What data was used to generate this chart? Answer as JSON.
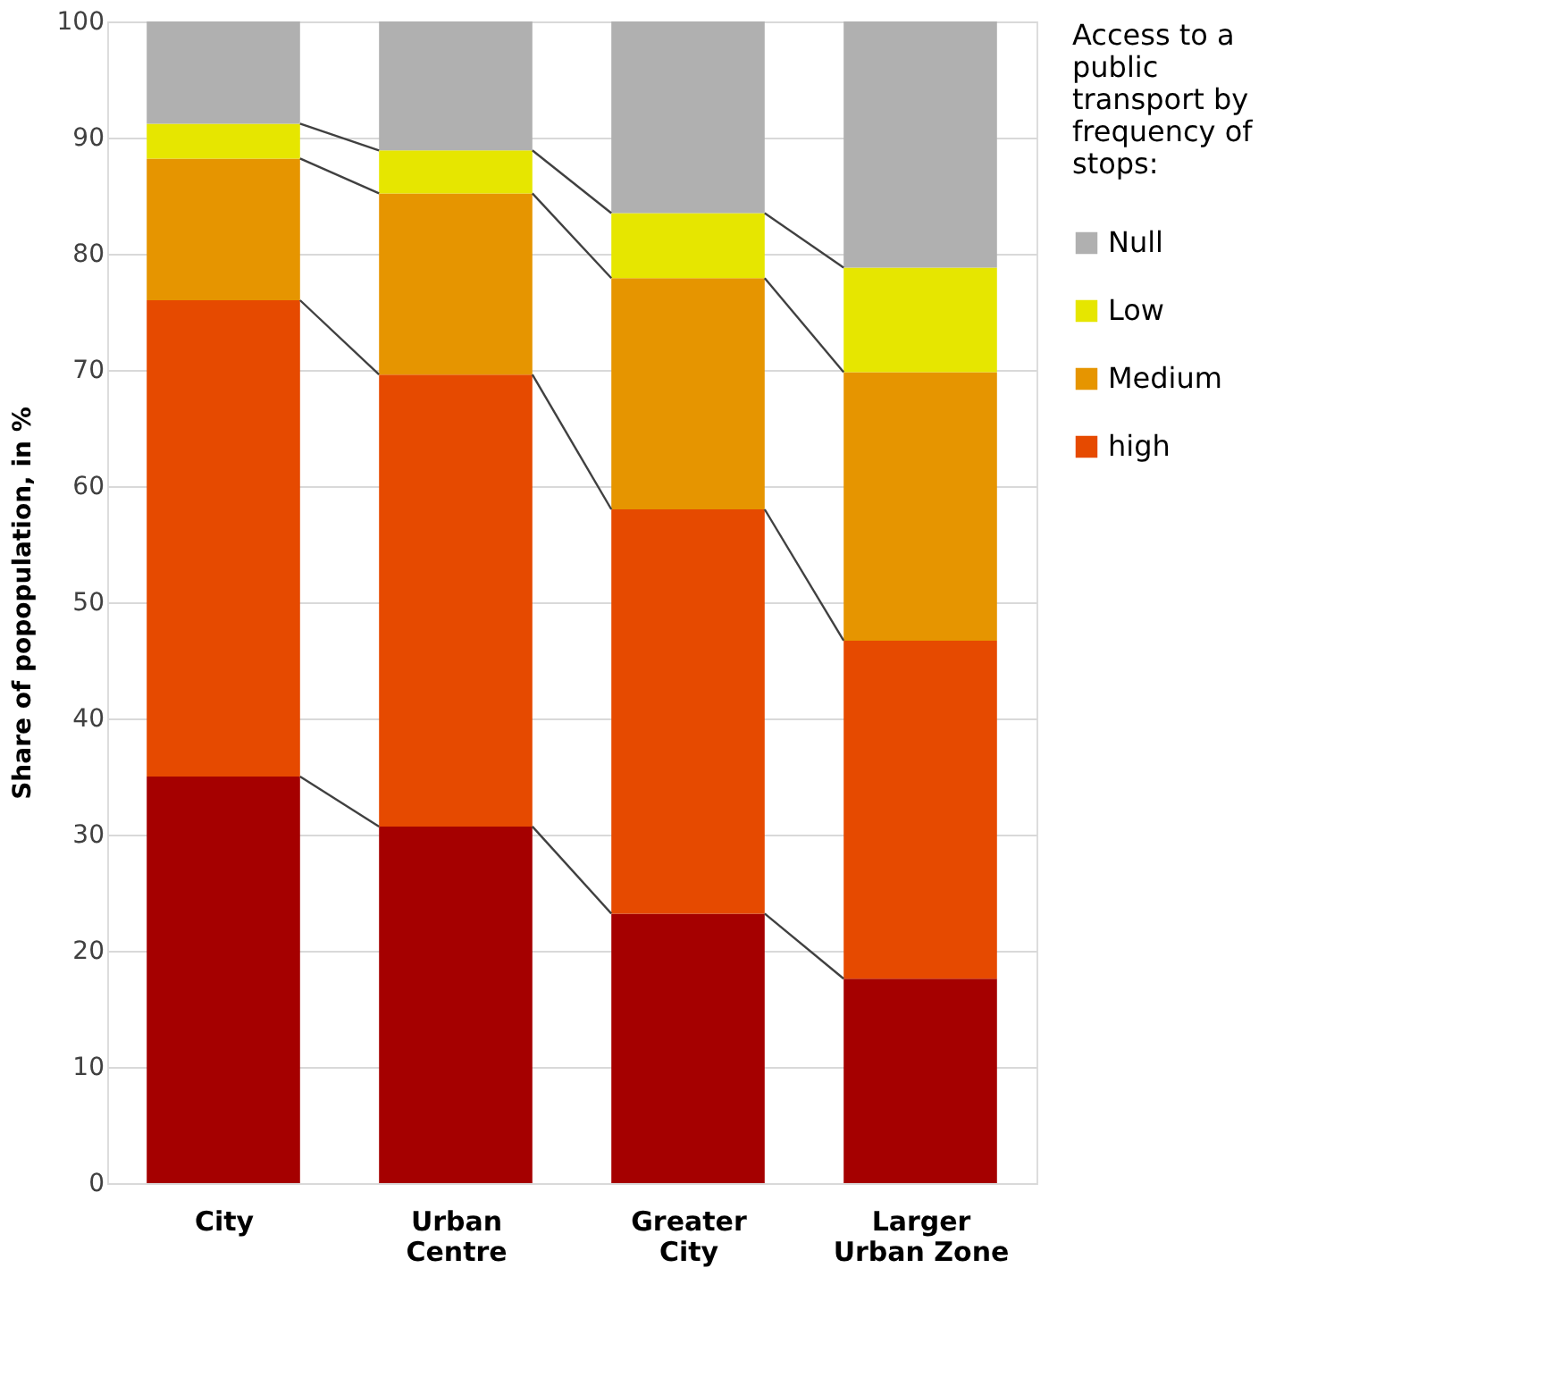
{
  "chart_data": {
    "type": "bar",
    "stacked": true,
    "ylabel": "Share of popopulation, in %",
    "legend_title": "Access to a public transport by frequency of stops:",
    "categories": [
      "City",
      "Urban Centre",
      "Greater City",
      "Larger Urban Zone"
    ],
    "series": [
      {
        "color": "#a50000",
        "values": [
          35.0,
          30.7,
          23.2,
          17.6
        ]
      },
      {
        "name": "high",
        "color": "#e64a00",
        "values": [
          41.0,
          38.9,
          34.8,
          29.1
        ]
      },
      {
        "name": "Medium",
        "color": "#e69500",
        "values": [
          12.2,
          15.6,
          19.9,
          23.1
        ]
      },
      {
        "name": "Low",
        "color": "#e6e600",
        "values": [
          3.0,
          3.7,
          5.6,
          9.0
        ]
      },
      {
        "name": "Null",
        "color": "#b0b0b0",
        "values": [
          8.8,
          11.1,
          16.5,
          21.2
        ]
      }
    ],
    "ylim": [
      0,
      100
    ],
    "yticks": [
      0,
      10,
      20,
      30,
      40,
      50,
      60,
      70,
      80,
      90,
      100
    ],
    "grid": "y",
    "legend": "right"
  }
}
